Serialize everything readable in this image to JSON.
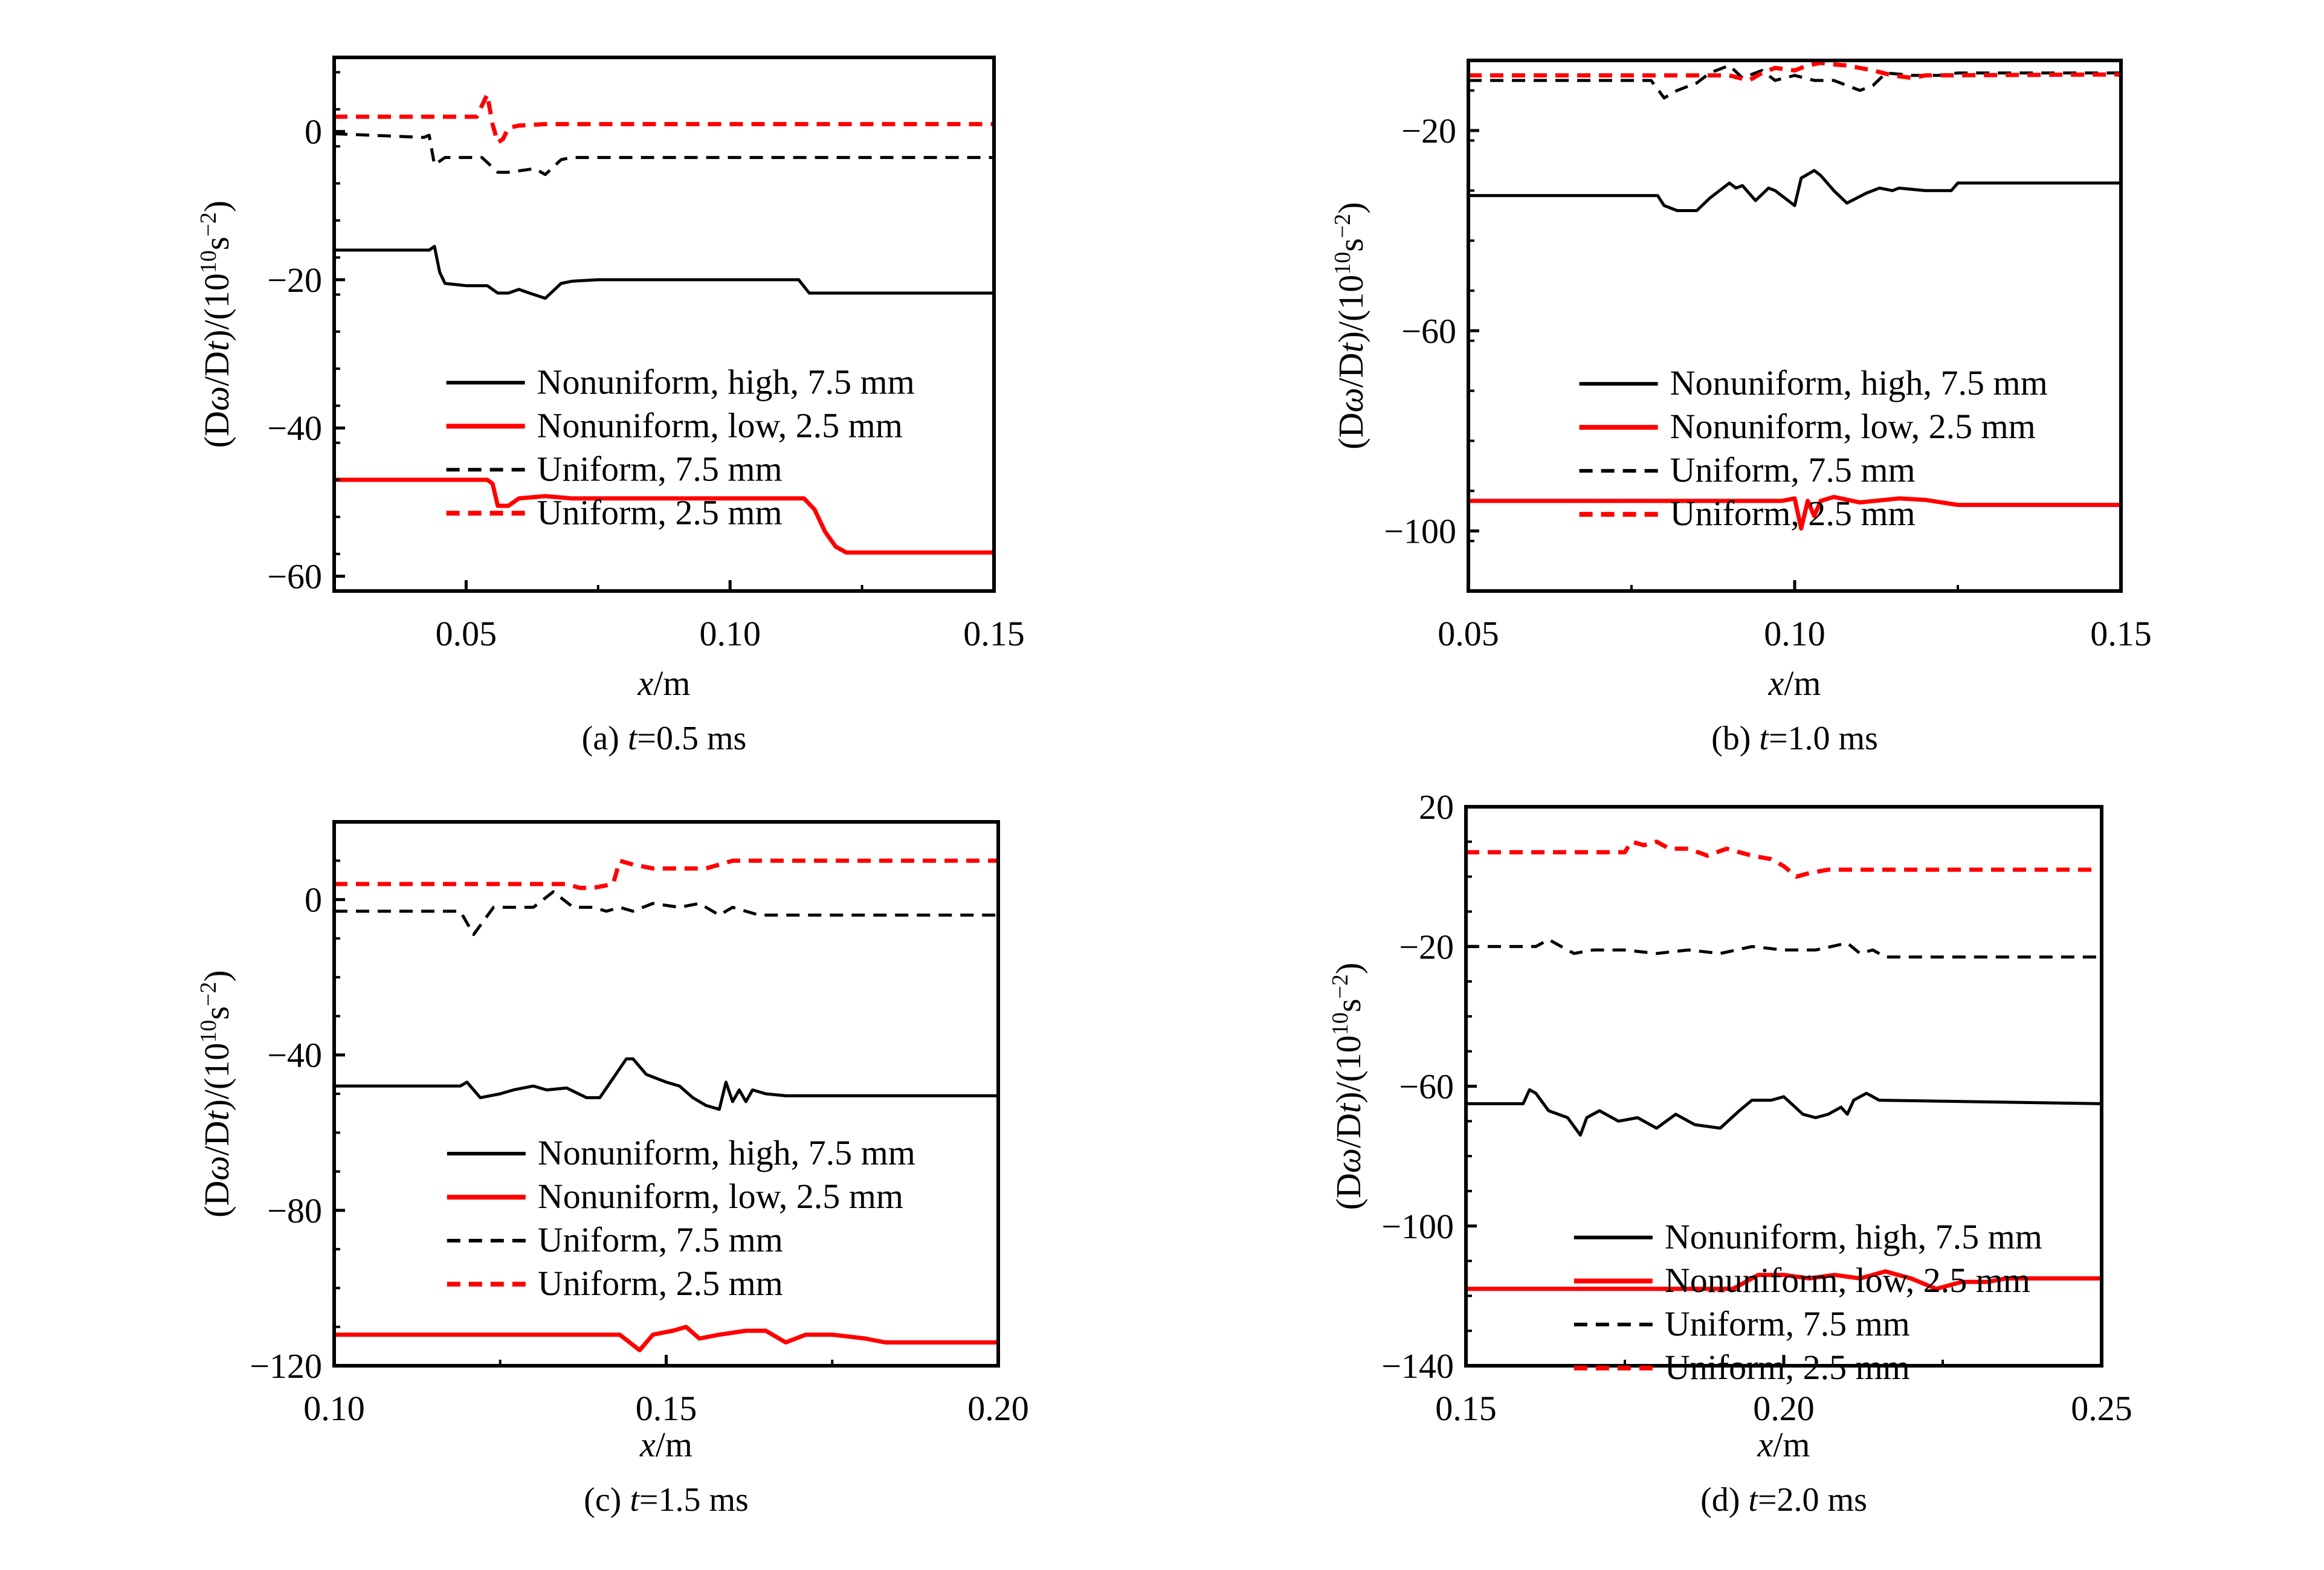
{
  "figure": {
    "y_label_prefix": "(D",
    "y_label_omega": "ω",
    "y_label_mid": "/D",
    "y_label_t": "t",
    "y_label_suffix": ")/(10",
    "y_label_exp": "10",
    "y_label_unit": "s",
    "y_label_unit_exp": "−2",
    "y_label_close": ")",
    "x_label_var": "x",
    "x_label_unit": "/m"
  },
  "legend": [
    {
      "label": "Nonuniform, high, 7.5 mm",
      "color": "#000000",
      "dash": "solid"
    },
    {
      "label": "Nonuniform, low, 2.5 mm",
      "color": "#ff0000",
      "dash": "solid"
    },
    {
      "label": "Uniform, 7.5 mm",
      "color": "#000000",
      "dash": "dashed"
    },
    {
      "label": "Uniform, 2.5 mm",
      "color": "#ff0000",
      "dash": "dashed"
    }
  ],
  "chart_data": [
    {
      "type": "line",
      "caption_prefix": "(a) ",
      "caption_t": "t",
      "caption_value": "=0.5 ms",
      "xlim": [
        0.025,
        0.15
      ],
      "ylim": [
        -62,
        10
      ],
      "xticks": [
        0.05,
        0.1,
        0.15
      ],
      "xtick_labels": [
        "0.05",
        "0.10",
        "0.15"
      ],
      "yticks": [
        0,
        -20,
        -40,
        -60
      ],
      "ytick_labels": [
        "0",
        "−20",
        "−40",
        "−60"
      ],
      "series": [
        {
          "name": "Nonuniform, high, 7.5 mm",
          "x": [
            0.025,
            0.043,
            0.044,
            0.045,
            0.046,
            0.05,
            0.054,
            0.056,
            0.058,
            0.06,
            0.062,
            0.065,
            0.068,
            0.07,
            0.075,
            0.1,
            0.113,
            0.115,
            0.15
          ],
          "y": [
            -16,
            -16,
            -15.5,
            -19,
            -20.5,
            -20.8,
            -20.8,
            -21.8,
            -21.8,
            -21.3,
            -21.8,
            -22.5,
            -20.5,
            -20.2,
            -20,
            -20,
            -20,
            -21.8,
            -21.8
          ]
        },
        {
          "name": "Nonuniform, low, 2.5 mm",
          "x": [
            0.025,
            0.054,
            0.055,
            0.056,
            0.058,
            0.06,
            0.065,
            0.07,
            0.1,
            0.114,
            0.116,
            0.118,
            0.12,
            0.122,
            0.15
          ],
          "y": [
            -47,
            -47,
            -47.5,
            -50.5,
            -50.5,
            -49.5,
            -49.2,
            -49.5,
            -49.5,
            -49.5,
            -51,
            -54,
            -56,
            -56.8,
            -56.8
          ]
        },
        {
          "name": "Uniform, 7.5 mm",
          "x": [
            0.025,
            0.042,
            0.043,
            0.044,
            0.046,
            0.05,
            0.053,
            0.056,
            0.058,
            0.063,
            0.065,
            0.068,
            0.07,
            0.15
          ],
          "y": [
            -0.3,
            -0.8,
            -0.5,
            -4.5,
            -3.5,
            -3.5,
            -3.5,
            -5.5,
            -5.5,
            -5,
            -5.8,
            -3.8,
            -3.5,
            -3.5
          ]
        },
        {
          "name": "Uniform, 2.5 mm",
          "x": [
            0.025,
            0.052,
            0.054,
            0.055,
            0.056,
            0.057,
            0.058,
            0.06,
            0.065,
            0.15
          ],
          "y": [
            2,
            2,
            5,
            1,
            -1.5,
            -1,
            0.5,
            0.8,
            1,
            1
          ]
        }
      ]
    },
    {
      "type": "line",
      "caption_prefix": "(b) ",
      "caption_t": "t",
      "caption_value": "=1.0 ms",
      "xlim": [
        0.05,
        0.15
      ],
      "ylim": [
        -112,
        -6
      ],
      "xticks": [
        0.05,
        0.1,
        0.15
      ],
      "xtick_labels": [
        "0.05",
        "0.10",
        "0.15"
      ],
      "yticks": [
        -20,
        -60,
        -100
      ],
      "ytick_labels": [
        "−20",
        "−60",
        "−100"
      ],
      "series": [
        {
          "name": "Nonuniform, high, 7.5 mm",
          "x": [
            0.05,
            0.079,
            0.08,
            0.082,
            0.085,
            0.087,
            0.089,
            0.09,
            0.091,
            0.092,
            0.094,
            0.096,
            0.097,
            0.1,
            0.101,
            0.103,
            0.104,
            0.106,
            0.108,
            0.111,
            0.113,
            0.115,
            0.116,
            0.12,
            0.124,
            0.125,
            0.15
          ],
          "y": [
            -33,
            -33,
            -35,
            -36,
            -36,
            -33.5,
            -31.5,
            -30.5,
            -31.5,
            -31,
            -34,
            -31.5,
            -32,
            -35,
            -29.5,
            -28,
            -29,
            -32,
            -34.5,
            -32.5,
            -31.5,
            -32,
            -31.5,
            -32,
            -32,
            -30.5,
            -30.5
          ]
        },
        {
          "name": "Nonuniform, low, 2.5 mm",
          "x": [
            0.05,
            0.098,
            0.1,
            0.101,
            0.102,
            0.103,
            0.104,
            0.106,
            0.11,
            0.116,
            0.12,
            0.125,
            0.15
          ],
          "y": [
            -94,
            -94,
            -93.5,
            -99.5,
            -94,
            -97,
            -94,
            -93.2,
            -94.3,
            -93.5,
            -93.8,
            -94.8,
            -94.8
          ]
        },
        {
          "name": "Uniform, 7.5 mm",
          "x": [
            0.05,
            0.078,
            0.08,
            0.082,
            0.085,
            0.087,
            0.09,
            0.092,
            0.095,
            0.097,
            0.1,
            0.103,
            0.106,
            0.108,
            0.11,
            0.112,
            0.114,
            0.118,
            0.122,
            0.125,
            0.15
          ],
          "y": [
            -10,
            -10,
            -13.5,
            -12,
            -10.5,
            -8.5,
            -7,
            -9.5,
            -8,
            -10,
            -9,
            -10,
            -10,
            -11,
            -12,
            -11,
            -8.5,
            -9,
            -9,
            -8.5,
            -8.5
          ]
        },
        {
          "name": "Uniform, 2.5 mm",
          "x": [
            0.05,
            0.09,
            0.093,
            0.095,
            0.097,
            0.1,
            0.102,
            0.104,
            0.106,
            0.108,
            0.11,
            0.112,
            0.115,
            0.118,
            0.12,
            0.15
          ],
          "y": [
            -9,
            -9,
            -10,
            -8.5,
            -7.5,
            -8,
            -7,
            -6.5,
            -6.8,
            -7,
            -7.5,
            -8,
            -9,
            -9.5,
            -9,
            -8.8
          ]
        }
      ]
    },
    {
      "type": "line",
      "caption_prefix": "(c) ",
      "caption_t": "t",
      "caption_value": "=1.5 ms",
      "xlim": [
        0.1,
        0.2
      ],
      "ylim": [
        -120,
        20
      ],
      "xticks": [
        0.1,
        0.15,
        0.2
      ],
      "xtick_labels": [
        "0.10",
        "0.15",
        "0.20"
      ],
      "yticks": [
        0,
        -40,
        -80,
        -120
      ],
      "ytick_labels": [
        "0",
        "−40",
        "−80",
        "−120"
      ],
      "series": [
        {
          "name": "Nonuniform, high, 7.5 mm",
          "x": [
            0.1,
            0.119,
            0.12,
            0.122,
            0.125,
            0.127,
            0.13,
            0.132,
            0.135,
            0.138,
            0.14,
            0.142,
            0.144,
            0.145,
            0.147,
            0.15,
            0.152,
            0.154,
            0.156,
            0.158,
            0.159,
            0.16,
            0.161,
            0.162,
            0.163,
            0.165,
            0.168,
            0.2
          ],
          "y": [
            -48,
            -48,
            -47,
            -51,
            -50,
            -49,
            -48,
            -49,
            -48.5,
            -51,
            -51,
            -46,
            -41,
            -41,
            -45,
            -47,
            -48,
            -51,
            -53,
            -54,
            -47,
            -52,
            -49,
            -52,
            -49,
            -50,
            -50.5,
            -50.5
          ]
        },
        {
          "name": "Nonuniform, low, 2.5 mm",
          "x": [
            0.1,
            0.143,
            0.146,
            0.148,
            0.151,
            0.153,
            0.155,
            0.158,
            0.162,
            0.165,
            0.168,
            0.171,
            0.175,
            0.18,
            0.183,
            0.2
          ],
          "y": [
            -112,
            -112,
            -116,
            -112,
            -111,
            -110,
            -113,
            -112,
            -111,
            -111,
            -114,
            -112,
            -112,
            -113,
            -114,
            -114
          ]
        },
        {
          "name": "Uniform, 7.5 mm",
          "x": [
            0.1,
            0.119,
            0.121,
            0.124,
            0.127,
            0.13,
            0.133,
            0.136,
            0.139,
            0.141,
            0.143,
            0.145,
            0.148,
            0.152,
            0.155,
            0.158,
            0.16,
            0.162,
            0.164,
            0.2
          ],
          "y": [
            -3,
            -3,
            -9,
            -2,
            -2,
            -2,
            2,
            -2,
            -2,
            -3,
            -2,
            -3,
            -1,
            -2,
            -1,
            -4,
            -2,
            -3,
            -4,
            -4
          ]
        },
        {
          "name": "Uniform, 2.5 mm",
          "x": [
            0.1,
            0.135,
            0.137,
            0.139,
            0.142,
            0.143,
            0.145,
            0.148,
            0.152,
            0.156,
            0.16,
            0.2
          ],
          "y": [
            4,
            4,
            3,
            3,
            4,
            10,
            9,
            8,
            8,
            8,
            10,
            10
          ]
        }
      ]
    },
    {
      "type": "line",
      "caption_prefix": "(d) ",
      "caption_t": "t",
      "caption_value": "=2.0 ms",
      "xlim": [
        0.15,
        0.25
      ],
      "ylim": [
        -140,
        20
      ],
      "xticks": [
        0.15,
        0.2,
        0.25
      ],
      "xtick_labels": [
        "0.15",
        "0.20",
        "0.25"
      ],
      "yticks": [
        20,
        -20,
        -60,
        -100,
        -140
      ],
      "ytick_labels": [
        "20",
        "−20",
        "−60",
        "−100",
        "−140"
      ],
      "series": [
        {
          "name": "Nonuniform, high, 7.5 mm",
          "x": [
            0.15,
            0.159,
            0.16,
            0.161,
            0.163,
            0.166,
            0.168,
            0.169,
            0.171,
            0.174,
            0.177,
            0.18,
            0.183,
            0.186,
            0.19,
            0.193,
            0.195,
            0.198,
            0.2,
            0.203,
            0.205,
            0.207,
            0.209,
            0.21,
            0.211,
            0.213,
            0.215,
            0.25
          ],
          "y": [
            -65,
            -65,
            -61,
            -62,
            -67,
            -69,
            -74,
            -69,
            -67,
            -70,
            -69,
            -72,
            -68,
            -71,
            -72,
            -67,
            -64,
            -64,
            -63,
            -68,
            -69,
            -68,
            -66,
            -68,
            -64,
            -62,
            -64,
            -65
          ]
        },
        {
          "name": "Nonuniform, low, 2.5 mm",
          "x": [
            0.15,
            0.192,
            0.194,
            0.196,
            0.2,
            0.204,
            0.208,
            0.212,
            0.216,
            0.22,
            0.224,
            0.228,
            0.232,
            0.235,
            0.25
          ],
          "y": [
            -118,
            -118,
            -116,
            -114,
            -114,
            -115,
            -114,
            -115,
            -113,
            -115,
            -118,
            -116,
            -116,
            -115,
            -115
          ]
        },
        {
          "name": "Uniform, 7.5 mm",
          "x": [
            0.15,
            0.161,
            0.163,
            0.165,
            0.167,
            0.17,
            0.175,
            0.18,
            0.185,
            0.19,
            0.195,
            0.2,
            0.205,
            0.21,
            0.212,
            0.214,
            0.216,
            0.22,
            0.25
          ],
          "y": [
            -20,
            -20,
            -18,
            -20,
            -22,
            -21,
            -21,
            -22,
            -21,
            -22,
            -20,
            -21,
            -21,
            -19,
            -22,
            -21,
            -23,
            -23,
            -23
          ]
        },
        {
          "name": "Uniform, 2.5 mm",
          "x": [
            0.15,
            0.175,
            0.176,
            0.178,
            0.18,
            0.182,
            0.185,
            0.188,
            0.191,
            0.195,
            0.198,
            0.2,
            0.202,
            0.204,
            0.207,
            0.212,
            0.25
          ],
          "y": [
            7,
            7,
            10,
            9,
            10,
            8,
            8,
            6,
            8,
            6,
            5,
            3,
            0,
            1,
            2,
            2,
            2
          ]
        }
      ]
    }
  ]
}
